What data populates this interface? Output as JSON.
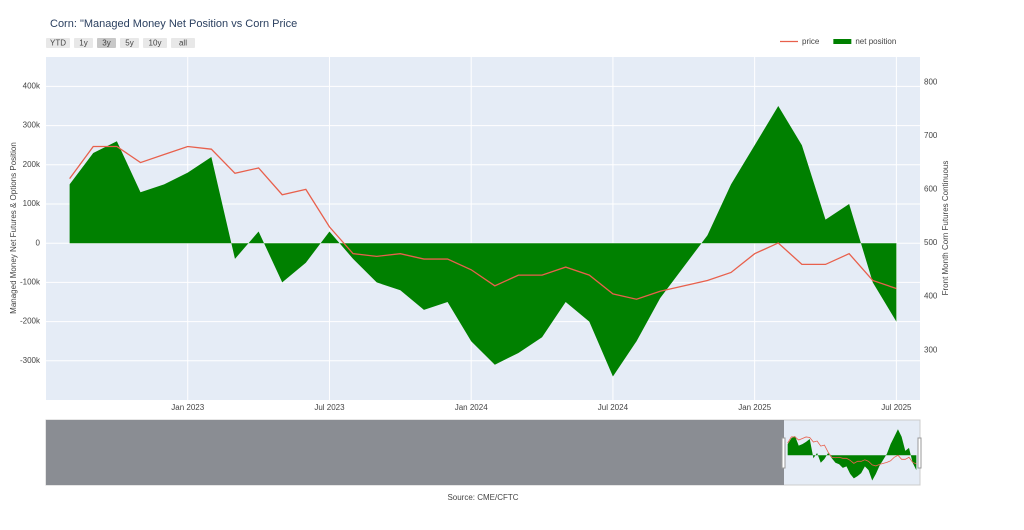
{
  "chart_data": {
    "type": "line-area",
    "title": "Corn: \"Managed Money Net Position vs Corn Price",
    "buttons": [
      "YTD",
      "1y",
      "3y",
      "5y",
      "10y",
      "all"
    ],
    "active_button": "3y",
    "y_label": "Managed Money Net Futures & Options Position",
    "y2_label": "Front Month Corn Futures Continuous",
    "source": "Source: CME/CFTC",
    "x": [
      "2022-08",
      "2022-09",
      "2022-10",
      "2022-11",
      "2022-12",
      "2023-01",
      "2023-02",
      "2023-03",
      "2023-04",
      "2023-05",
      "2023-06",
      "2023-07",
      "2023-08",
      "2023-09",
      "2023-10",
      "2023-11",
      "2023-12",
      "2024-01",
      "2024-02",
      "2024-03",
      "2024-04",
      "2024-05",
      "2024-06",
      "2024-07",
      "2024-08",
      "2024-09",
      "2024-10",
      "2024-11",
      "2024-12",
      "2025-01",
      "2025-02",
      "2025-03",
      "2025-04",
      "2025-05",
      "2025-06",
      "2025-07"
    ],
    "xlim": [
      "2022-07",
      "2025-08"
    ],
    "xticks": [
      {
        "value": "2023-01",
        "label": "Jan 2023"
      },
      {
        "value": "2023-07",
        "label": "Jul 2023"
      },
      {
        "value": "2024-01",
        "label": "Jan 2024"
      },
      {
        "value": "2024-07",
        "label": "Jul 2024"
      },
      {
        "value": "2025-01",
        "label": "Jan 2025"
      },
      {
        "value": "2025-07",
        "label": "Jul 2025"
      }
    ],
    "ylim": [
      -400000,
      475000
    ],
    "yticks": [
      {
        "value": -300000,
        "label": "-300k"
      },
      {
        "value": -200000,
        "label": "-200k"
      },
      {
        "value": -100000,
        "label": "-100k"
      },
      0,
      {
        "value": 100000,
        "label": "100k"
      },
      {
        "value": 200000,
        "label": "200k"
      },
      {
        "value": 300000,
        "label": "300k"
      },
      {
        "value": 400000,
        "label": "400k"
      }
    ],
    "y2lim": [
      207,
      847
    ],
    "y2ticks": [
      300,
      400,
      500,
      600,
      700,
      800
    ],
    "grid": true,
    "legend": "top-right",
    "series": [
      {
        "name": "price",
        "color": "#e8604c",
        "axis": "y2",
        "kind": "line",
        "values": [
          620,
          680,
          680,
          650,
          665,
          680,
          675,
          630,
          640,
          590,
          600,
          530,
          480,
          475,
          480,
          470,
          470,
          450,
          420,
          440,
          440,
          455,
          440,
          405,
          395,
          410,
          420,
          430,
          445,
          480,
          500,
          460,
          460,
          480,
          430,
          415
        ]
      },
      {
        "name": "net position",
        "color": "#008000",
        "kind": "area",
        "values": [
          150000,
          230000,
          260000,
          130000,
          150000,
          180000,
          220000,
          -40000,
          30000,
          -100000,
          -50000,
          30000,
          -40000,
          -100000,
          -120000,
          -170000,
          -150000,
          -250000,
          -310000,
          -280000,
          -240000,
          -150000,
          -200000,
          -340000,
          -250000,
          -140000,
          -60000,
          20000,
          150000,
          250000,
          350000,
          250000,
          60000,
          100000,
          -100000,
          -200000
        ]
      }
    ]
  }
}
